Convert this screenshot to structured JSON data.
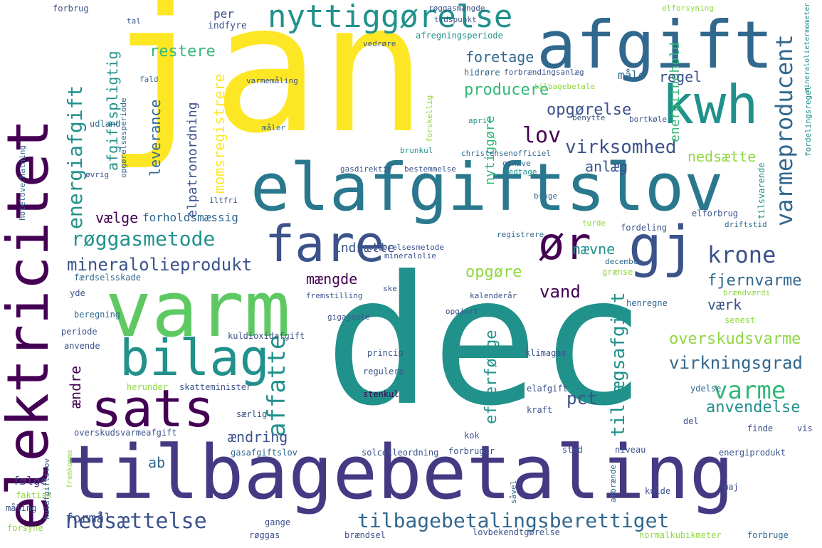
{
  "words": [
    {
      "text": "dec",
      "color": "#21918c"
    },
    {
      "text": "jan",
      "color": "#fde725"
    },
    {
      "text": "tilbagebetaling",
      "color": "#443a83"
    },
    {
      "text": "elafgiftslov",
      "color": "#2a788e"
    },
    {
      "text": "elektricitet",
      "color": "#440154"
    },
    {
      "text": "varm",
      "color": "#5ec962"
    },
    {
      "text": "afgift",
      "color": "#31688e"
    },
    {
      "text": "kwh",
      "color": "#21918c"
    },
    {
      "text": "gj",
      "color": "#3b528b"
    },
    {
      "text": "bilag",
      "color": "#21918c"
    },
    {
      "text": "sats",
      "color": "#440154"
    },
    {
      "text": "fare",
      "color": "#3b528b"
    },
    {
      "text": "ør",
      "color": "#440154"
    },
    {
      "text": "nyttiggørelse",
      "color": "#21918c"
    },
    {
      "text": "nedsættelse",
      "color": "#3b528b"
    },
    {
      "text": "tilbagebetalingsberettiget",
      "color": "#31688e"
    },
    {
      "text": "røggasmetode",
      "color": "#21918c"
    },
    {
      "text": "mineralolieprodukt",
      "color": "#3b528b"
    },
    {
      "text": "energiafgift",
      "color": "#21918c"
    },
    {
      "text": "varmeproducent",
      "color": "#31688e"
    },
    {
      "text": "virksomhed",
      "color": "#3b528b"
    },
    {
      "text": "krone",
      "color": "#3b528b"
    },
    {
      "text": "varme",
      "color": "#35b779"
    },
    {
      "text": "lov",
      "color": "#440154"
    },
    {
      "text": "vand",
      "color": "#440154"
    },
    {
      "text": "affatte",
      "color": "#21918c"
    },
    {
      "text": "virkningsgrad",
      "color": "#31688e"
    },
    {
      "text": "fjernvarme",
      "color": "#31688e"
    },
    {
      "text": "overskudsvarme",
      "color": "#90d743"
    },
    {
      "text": "producere",
      "color": "#35b779"
    },
    {
      "text": "tillægsafgift",
      "color": "#21918c"
    },
    {
      "text": "efterfølge",
      "color": "#21918c"
    },
    {
      "text": "anvendelse",
      "color": "#21918c"
    },
    {
      "text": "opgørelse",
      "color": "#3b528b"
    },
    {
      "text": "restere",
      "color": "#35b779"
    },
    {
      "text": "foretage",
      "color": "#31688e"
    },
    {
      "text": "mængde",
      "color": "#440154"
    },
    {
      "text": "opgøre",
      "color": "#90d743"
    },
    {
      "text": "momsregistrere",
      "color": "#fde725"
    },
    {
      "text": "elpatronordning",
      "color": "#3b528b"
    },
    {
      "text": "afgiftspligtig",
      "color": "#21918c"
    },
    {
      "text": "leverance",
      "color": "#31688e"
    },
    {
      "text": "nytiggøre",
      "color": "#35b779"
    },
    {
      "text": "energiindhold",
      "color": "#35b779"
    },
    {
      "text": "nedsætte",
      "color": "#90d743"
    },
    {
      "text": "ændre",
      "color": "#440154"
    },
    {
      "text": "pct",
      "color": "#3b528b"
    },
    {
      "text": "værk",
      "color": "#3b528b"
    },
    {
      "text": "nævne",
      "color": "#21918c"
    },
    {
      "text": "anlæg",
      "color": "#3b528b"
    },
    {
      "text": "regel",
      "color": "#3b528b"
    },
    {
      "text": "måle",
      "color": "#31688e"
    },
    {
      "text": "indsætte",
      "color": "#3b528b"
    },
    {
      "text": "vælge",
      "color": "#440154"
    },
    {
      "text": "forholdsmæssig",
      "color": "#31688e"
    },
    {
      "text": "ændring",
      "color": "#3b528b"
    },
    {
      "text": "ab",
      "color": "#31688e"
    },
    {
      "text": "per",
      "color": "#3b528b"
    },
    {
      "text": "formål",
      "color": "#3b528b"
    },
    {
      "text": "følge",
      "color": "#443a83"
    },
    {
      "text": "indfyre",
      "color": "#3b528b"
    },
    {
      "text": "røggasmængde",
      "color": "#3b528b"
    },
    {
      "text": "tidspunkt",
      "color": "#3b528b"
    },
    {
      "text": "elforsyning",
      "color": "#90d743"
    },
    {
      "text": "afregningsperiode",
      "color": "#21918c"
    },
    {
      "text": "vedrøre",
      "color": "#3b528b"
    },
    {
      "text": "hidrøre",
      "color": "#31688e"
    },
    {
      "text": "forbrændingsanlæg",
      "color": "#3b528b"
    },
    {
      "text": "tilbagebetale",
      "color": "#90d743"
    },
    {
      "text": "varmemåling",
      "color": "#3b528b"
    },
    {
      "text": "fald",
      "color": "#31688e"
    },
    {
      "text": "benytte",
      "color": "#3b528b"
    },
    {
      "text": "bortkøle",
      "color": "#3b528b"
    },
    {
      "text": "opgørelsesperiode",
      "color": "#31688e"
    },
    {
      "text": "udland",
      "color": "#31688e"
    },
    {
      "text": "måler",
      "color": "#31688e"
    },
    {
      "text": "brunkul",
      "color": "#21918c"
    },
    {
      "text": "forskellig",
      "color": "#90d743"
    },
    {
      "text": "april",
      "color": "#21918c"
    },
    {
      "text": "christensenofficiel",
      "color": "#31688e"
    },
    {
      "text": "gasdirektiv",
      "color": "#3b528b"
    },
    {
      "text": "bestemmelse",
      "color": "#3b528b"
    },
    {
      "text": "ophæve",
      "color": "#31688e"
    },
    {
      "text": "medtage",
      "color": "#21918c"
    },
    {
      "text": "øvrig",
      "color": "#3b528b"
    },
    {
      "text": "hoteloverhatning",
      "color": "#31688e"
    },
    {
      "text": "iltfri",
      "color": "#3b528b"
    },
    {
      "text": "bruge",
      "color": "#31688e"
    },
    {
      "text": "tilsvarende",
      "color": "#21918c"
    },
    {
      "text": "fordelingsregel",
      "color": "#21918c"
    },
    {
      "text": "mineralolietermometer",
      "color": "#21918c"
    },
    {
      "text": "elforbrug",
      "color": "#3b528b"
    },
    {
      "text": "fordeling",
      "color": "#3b528b"
    },
    {
      "text": "turde",
      "color": "#90d743"
    },
    {
      "text": "driftstid",
      "color": "#31688e"
    },
    {
      "text": "registrere",
      "color": "#31688e"
    },
    {
      "text": "opgørelsesmetode",
      "color": "#3b528b"
    },
    {
      "text": "mineralolie",
      "color": "#3b528b"
    },
    {
      "text": "december",
      "color": "#31688e"
    },
    {
      "text": "grænse",
      "color": "#90d743"
    },
    {
      "text": "brændværdi",
      "color": "#90d743"
    },
    {
      "text": "færdselsskade",
      "color": "#31688e"
    },
    {
      "text": "fremstilling",
      "color": "#3b528b"
    },
    {
      "text": "yde",
      "color": "#3b528b"
    },
    {
      "text": "ske",
      "color": "#3b528b"
    },
    {
      "text": "kalenderår",
      "color": "#3b528b"
    },
    {
      "text": "beregning",
      "color": "#31688e"
    },
    {
      "text": "gigajoule",
      "color": "#3b528b"
    },
    {
      "text": "opgjort",
      "color": "#3b528b"
    },
    {
      "text": "henregne",
      "color": "#31688e"
    },
    {
      "text": "senest",
      "color": "#90d743"
    },
    {
      "text": "periode",
      "color": "#3b528b"
    },
    {
      "text": "anvende",
      "color": "#3b528b"
    },
    {
      "text": "kuldioxidafgift",
      "color": "#3b528b"
    },
    {
      "text": "princip",
      "color": "#3b528b"
    },
    {
      "text": "klimagas",
      "color": "#3b528b"
    },
    {
      "text": "regulere",
      "color": "#3b528b"
    },
    {
      "text": "herunder",
      "color": "#90d743"
    },
    {
      "text": "skatteminister",
      "color": "#3b528b"
    },
    {
      "text": "stenkul",
      "color": "#440154"
    },
    {
      "text": "elafgift",
      "color": "#3b528b"
    },
    {
      "text": "ydelse",
      "color": "#31688e"
    },
    {
      "text": "særlig",
      "color": "#3b528b"
    },
    {
      "text": "kraft",
      "color": "#3b528b"
    },
    {
      "text": "del",
      "color": "#3b528b"
    },
    {
      "text": "overskudsvarmeafgift",
      "color": "#3b528b"
    },
    {
      "text": "kok",
      "color": "#3b528b"
    },
    {
      "text": "finde",
      "color": "#3b528b"
    },
    {
      "text": "vis",
      "color": "#3b528b"
    },
    {
      "text": "gasafgiftslov",
      "color": "#31688e"
    },
    {
      "text": "solcelleordning",
      "color": "#3b528b"
    },
    {
      "text": "forbruger",
      "color": "#3b528b"
    },
    {
      "text": "sted",
      "color": "#3b528b"
    },
    {
      "text": "niveau",
      "color": "#3b528b"
    },
    {
      "text": "energiprodukt",
      "color": "#3b528b"
    },
    {
      "text": "faktisk",
      "color": "#90d743"
    },
    {
      "text": "kulafgiftslov",
      "color": "#31688e"
    },
    {
      "text": "måling",
      "color": "#3b528b"
    },
    {
      "text": "afbrænde",
      "color": "#31688e"
    },
    {
      "text": "kulde",
      "color": "#3b528b"
    },
    {
      "text": "maj",
      "color": "#3b528b"
    },
    {
      "text": "såvel",
      "color": "#31688e"
    },
    {
      "text": "forsyne",
      "color": "#90d743"
    },
    {
      "text": "gange",
      "color": "#3b528b"
    },
    {
      "text": "røggas",
      "color": "#3b528b"
    },
    {
      "text": "brændsel",
      "color": "#3b528b"
    },
    {
      "text": "lovbekendtgørelse",
      "color": "#3b528b"
    },
    {
      "text": "normalkubikmeter",
      "color": "#90d743"
    },
    {
      "text": "forbruge",
      "color": "#31688e"
    },
    {
      "text": "forbrug",
      "color": "#3b528b"
    },
    {
      "text": "tal",
      "color": "#3b528b"
    },
    {
      "text": "fremkomme",
      "color": "#90d743"
    }
  ]
}
